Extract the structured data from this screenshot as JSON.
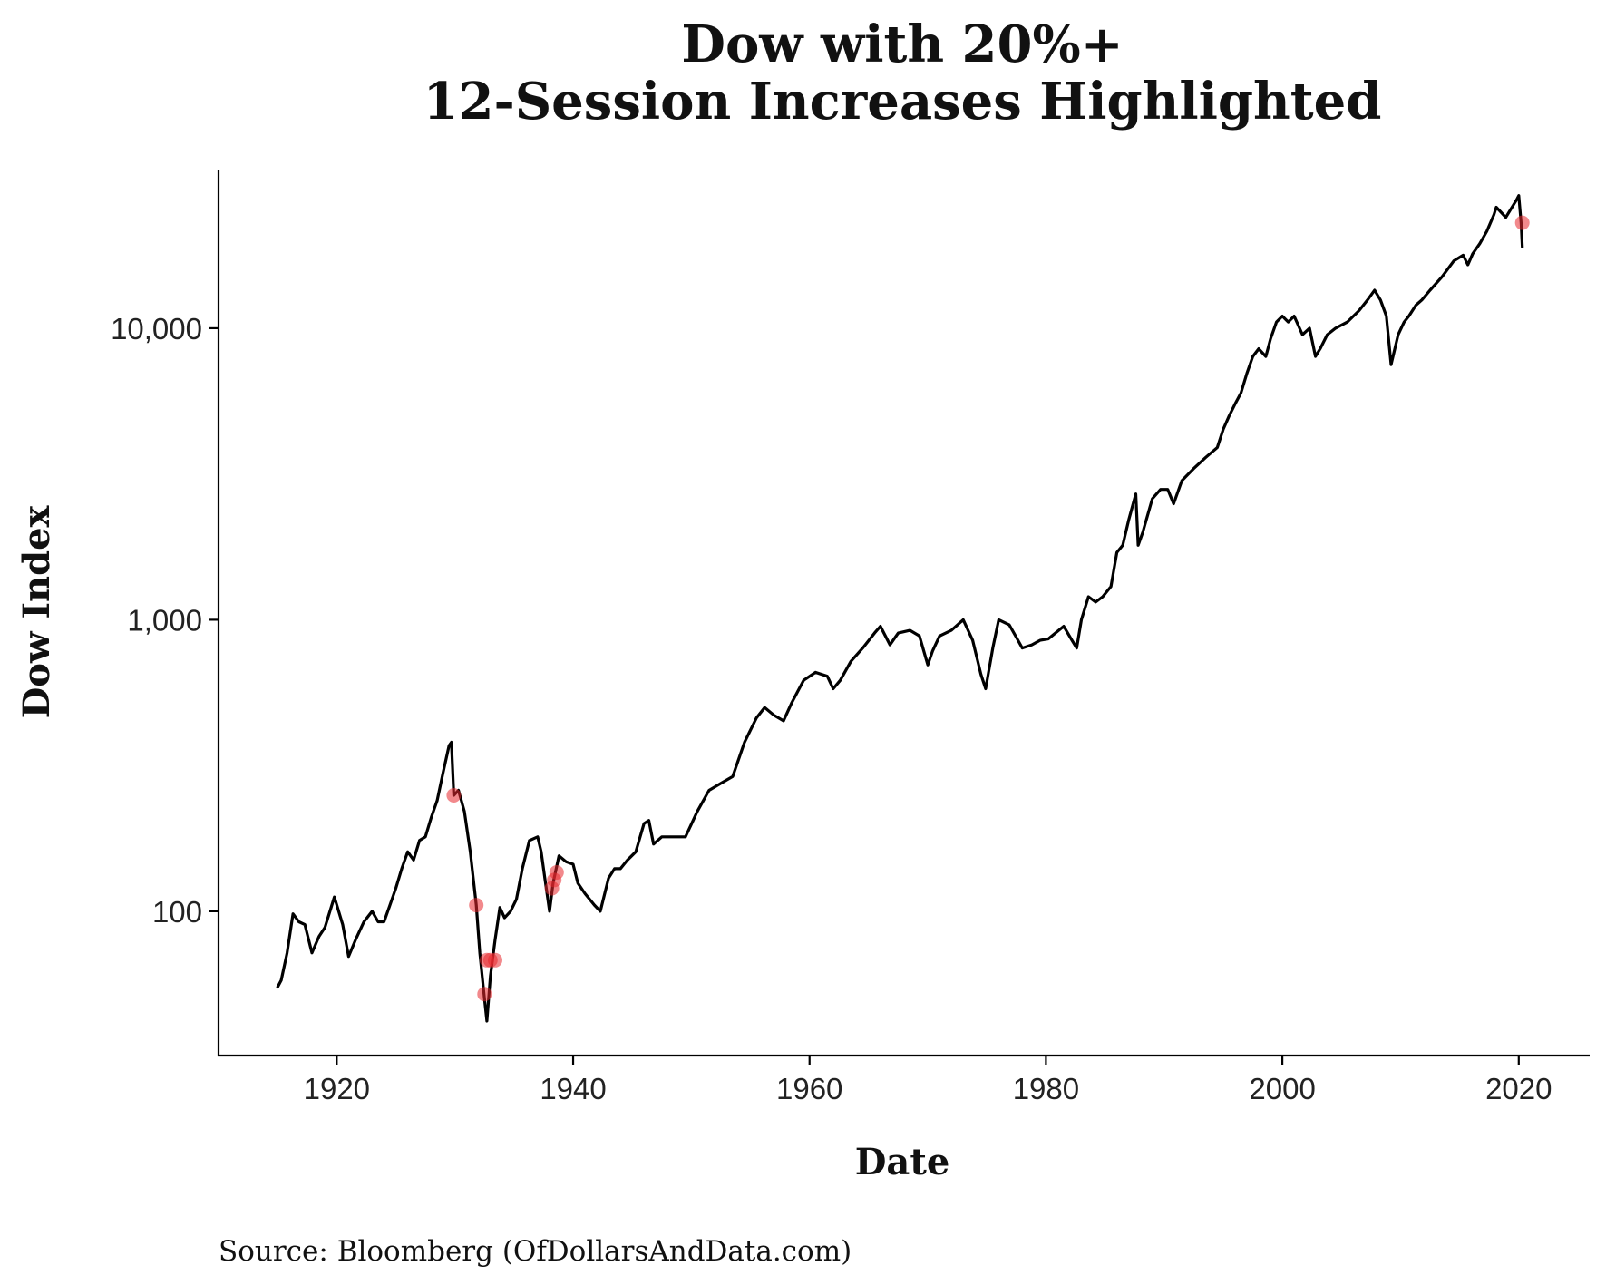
{
  "chart_data": {
    "type": "line",
    "title_lines": [
      "Dow with 20%+",
      "12-Session Increases Highlighted"
    ],
    "xlabel": "Date",
    "ylabel": "Dow Index",
    "caption": "Source:  Bloomberg (OfDollarsAndData.com)",
    "y_scale": "log",
    "grid": false,
    "xlim": [
      1910,
      2026
    ],
    "ylim": [
      32,
      35000
    ],
    "x_ticks": [
      1920,
      1940,
      1960,
      1980,
      2000,
      2020
    ],
    "x_tick_labels": [
      "1920",
      "1940",
      "1960",
      "1980",
      "2000",
      "2020"
    ],
    "y_ticks": [
      100,
      1000,
      10000
    ],
    "y_tick_labels": [
      "100",
      "1,000",
      "10,000"
    ],
    "series": [
      {
        "color": "#000000",
        "x": [
          1915.0,
          1915.3,
          1915.8,
          1916.3,
          1916.8,
          1917.3,
          1917.9,
          1918.5,
          1919.0,
          1919.8,
          1920.5,
          1921.0,
          1921.6,
          1922.3,
          1923.0,
          1923.5,
          1924.0,
          1924.5,
          1925.0,
          1925.5,
          1926.0,
          1926.5,
          1927.0,
          1927.5,
          1928.0,
          1928.5,
          1929.0,
          1929.5,
          1929.7,
          1929.9,
          1930.3,
          1930.8,
          1931.3,
          1931.8,
          1932.1,
          1932.5,
          1932.7,
          1933.0,
          1933.4,
          1933.8,
          1934.2,
          1934.7,
          1935.2,
          1935.7,
          1936.3,
          1937.0,
          1937.3,
          1937.6,
          1938.0,
          1938.3,
          1938.8,
          1939.4,
          1940.0,
          1940.4,
          1941.0,
          1941.8,
          1942.3,
          1943.0,
          1943.5,
          1944.0,
          1944.6,
          1945.3,
          1946.0,
          1946.4,
          1946.8,
          1947.5,
          1948.5,
          1949.5,
          1950.5,
          1951.5,
          1952.5,
          1953.5,
          1954.5,
          1955.5,
          1956.2,
          1957.0,
          1957.8,
          1958.5,
          1959.5,
          1960.5,
          1961.5,
          1962.0,
          1962.6,
          1963.5,
          1964.5,
          1965.5,
          1966.0,
          1966.8,
          1967.5,
          1968.5,
          1969.3,
          1970.0,
          1970.4,
          1971.0,
          1972.0,
          1973.0,
          1973.8,
          1974.5,
          1974.9,
          1975.5,
          1976.0,
          1976.9,
          1977.5,
          1978.0,
          1978.8,
          1979.5,
          1980.2,
          1980.8,
          1981.5,
          1982.2,
          1982.6,
          1983.0,
          1983.6,
          1984.2,
          1984.8,
          1985.5,
          1986.0,
          1986.5,
          1987.0,
          1987.6,
          1987.8,
          1988.2,
          1989.0,
          1989.7,
          1990.3,
          1990.8,
          1991.5,
          1992.5,
          1993.5,
          1994.5,
          1995.0,
          1995.5,
          1996.0,
          1996.5,
          1997.0,
          1997.5,
          1998.0,
          1998.6,
          1999.0,
          1999.5,
          2000.0,
          2000.5,
          2001.0,
          2001.7,
          2002.3,
          2002.8,
          2003.2,
          2003.8,
          2004.5,
          2005.5,
          2006.5,
          2007.2,
          2007.8,
          2008.3,
          2008.8,
          2009.2,
          2009.8,
          2010.3,
          2010.7,
          2011.3,
          2011.8,
          2012.5,
          2013.5,
          2014.5,
          2015.3,
          2015.7,
          2016.1,
          2016.7,
          2017.3,
          2017.9,
          2018.1,
          2018.5,
          2018.9,
          2019.3,
          2019.8,
          2020.0,
          2020.2,
          2020.3
        ],
        "y": [
          55,
          58,
          72,
          98,
          92,
          90,
          72,
          82,
          88,
          112,
          90,
          70,
          80,
          92,
          100,
          92,
          92,
          105,
          120,
          140,
          160,
          150,
          175,
          180,
          210,
          240,
          300,
          370,
          380,
          250,
          260,
          220,
          160,
          105,
          72,
          50,
          42,
          60,
          80,
          103,
          95,
          100,
          110,
          140,
          175,
          180,
          160,
          130,
          100,
          125,
          155,
          148,
          145,
          125,
          115,
          105,
          100,
          130,
          140,
          140,
          150,
          160,
          200,
          205,
          170,
          180,
          180,
          180,
          220,
          260,
          275,
          290,
          380,
          460,
          500,
          470,
          450,
          520,
          620,
          660,
          640,
          580,
          620,
          720,
          800,
          900,
          950,
          820,
          900,
          920,
          880,
          700,
          780,
          880,
          920,
          1000,
          850,
          650,
          580,
          800,
          1000,
          960,
          870,
          800,
          820,
          850,
          860,
          900,
          950,
          850,
          800,
          1000,
          1200,
          1150,
          1200,
          1300,
          1700,
          1800,
          2200,
          2700,
          1800,
          2000,
          2600,
          2800,
          2800,
          2500,
          3000,
          3300,
          3600,
          3900,
          4500,
          5000,
          5500,
          6000,
          7000,
          8000,
          8500,
          8000,
          9200,
          10500,
          11000,
          10500,
          11000,
          9500,
          10000,
          8000,
          8500,
          9500,
          10000,
          10500,
          11500,
          12500,
          13500,
          12500,
          11000,
          7500,
          9500,
          10500,
          11000,
          12000,
          12500,
          13500,
          15000,
          17000,
          17800,
          16500,
          18000,
          19500,
          21500,
          24500,
          26000,
          25000,
          24000,
          25500,
          27500,
          28500,
          23000,
          19000
        ],
        "markers_x": [
          1929.9,
          1931.8,
          1932.5,
          1932.7,
          1933.0,
          1933.4,
          1938.2,
          1938.4,
          1938.6,
          2020.3
        ],
        "markers_y": [
          250,
          105,
          52,
          68,
          68,
          68,
          120,
          128,
          136,
          23000
        ],
        "marker_color": "#e8282e"
      }
    ]
  }
}
